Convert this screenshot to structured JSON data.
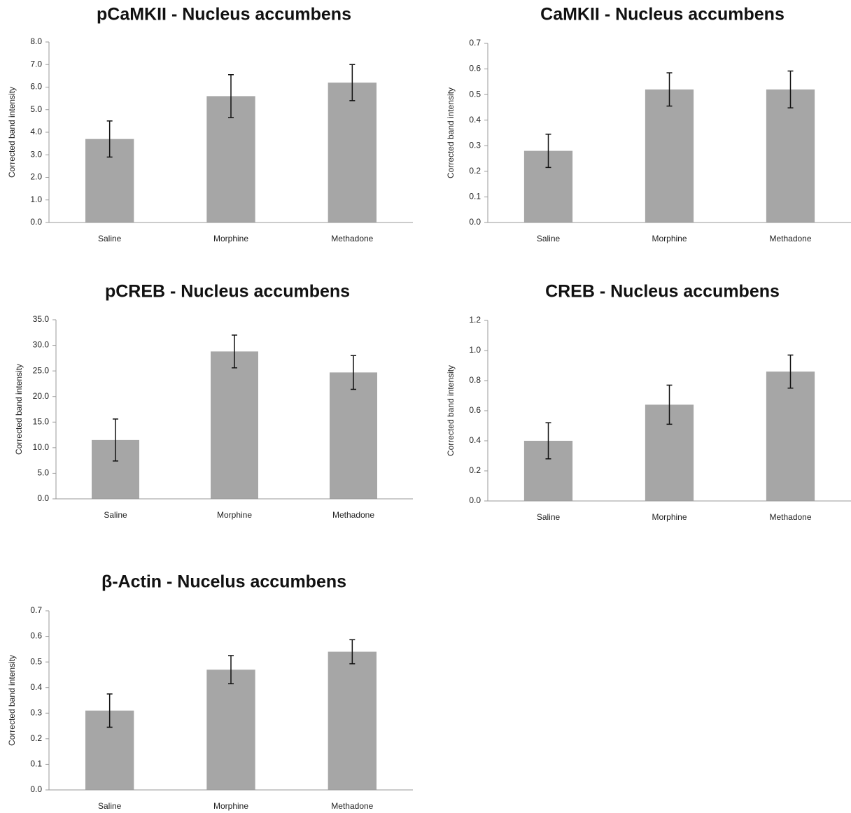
{
  "chart_data": [
    {
      "type": "bar",
      "title": "pCaMKII - Nucleus accumbens",
      "y_label": "Corrected band intensity",
      "categories": [
        "Saline",
        "Morphine",
        "Methadone"
      ],
      "values": [
        3.7,
        5.6,
        6.2
      ],
      "errors": [
        0.8,
        0.95,
        0.8
      ],
      "color": "#a6a6a6",
      "ylim": [
        0,
        8
      ],
      "yticks": [
        {
          "value": 0,
          "label": "0.0"
        },
        {
          "value": 1,
          "label": "1.0"
        },
        {
          "value": 2,
          "label": "2.0"
        },
        {
          "value": 3,
          "label": "3.0"
        },
        {
          "value": 4,
          "label": "4.0"
        },
        {
          "value": 5,
          "label": "5.0"
        },
        {
          "value": 6,
          "label": "6.0"
        },
        {
          "value": 7,
          "label": "7.0"
        },
        {
          "value": 8,
          "label": "8.0"
        }
      ]
    },
    {
      "type": "bar",
      "title": "CaMKII - Nucleus accumbens",
      "y_label": "Corrected band intensity",
      "categories": [
        "Saline",
        "Morphine",
        "Methadone"
      ],
      "values": [
        0.28,
        0.52,
        0.52
      ],
      "errors": [
        0.065,
        0.065,
        0.072
      ],
      "color": "#a6a6a6",
      "ylim": [
        0,
        0.7
      ],
      "yticks": [
        {
          "value": 0,
          "label": "0.0"
        },
        0.1,
        0.2,
        0.3,
        0.4,
        0.5,
        0.6,
        0.7
      ]
    },
    {
      "type": "bar",
      "title": "pCREB - Nucleus accumbens",
      "y_label": "Corrected band intensity",
      "categories": [
        "Saline",
        "Morphine",
        "Methadone"
      ],
      "values": [
        11.5,
        28.8,
        24.7
      ],
      "errors": [
        4.1,
        3.2,
        3.3
      ],
      "color": "#a6a6a6",
      "ylim": [
        0,
        35
      ],
      "yticks": [
        {
          "value": 0,
          "label": "0.0"
        },
        {
          "value": 5,
          "label": "5.0"
        },
        {
          "value": 10,
          "label": "10.0"
        },
        {
          "value": 15,
          "label": "15.0"
        },
        {
          "value": 20,
          "label": "20.0"
        },
        {
          "value": 25,
          "label": "25.0"
        },
        {
          "value": 30,
          "label": "30.0"
        },
        {
          "value": 35,
          "label": "35.0"
        }
      ]
    },
    {
      "type": "bar",
      "title": "CREB - Nucleus accumbens",
      "y_label": "Corrected band intensity",
      "categories": [
        "Saline",
        "Morphine",
        "Methadone"
      ],
      "values": [
        0.4,
        0.64,
        0.86
      ],
      "errors": [
        0.12,
        0.13,
        0.11
      ],
      "color": "#a6a6a6",
      "ylim": [
        0,
        1.2
      ],
      "yticks": [
        {
          "value": 0,
          "label": "0.0"
        },
        0.2,
        0.4,
        0.6,
        0.8,
        {
          "value": 1,
          "label": "1.0"
        },
        1.2
      ]
    },
    {
      "type": "bar",
      "title": "β-Actin - Nucelus accumbens",
      "y_label": "Corrected band intensity",
      "categories": [
        "Saline",
        "Morphine",
        "Methadone"
      ],
      "values": [
        0.31,
        0.47,
        0.54
      ],
      "errors": [
        0.065,
        0.055,
        0.047
      ],
      "color": "#a6a6a6",
      "ylim": [
        0,
        0.7
      ],
      "yticks": [
        {
          "value": 0,
          "label": "0.0"
        },
        0.1,
        0.2,
        0.3,
        0.4,
        0.5,
        0.6,
        0.7
      ]
    }
  ]
}
